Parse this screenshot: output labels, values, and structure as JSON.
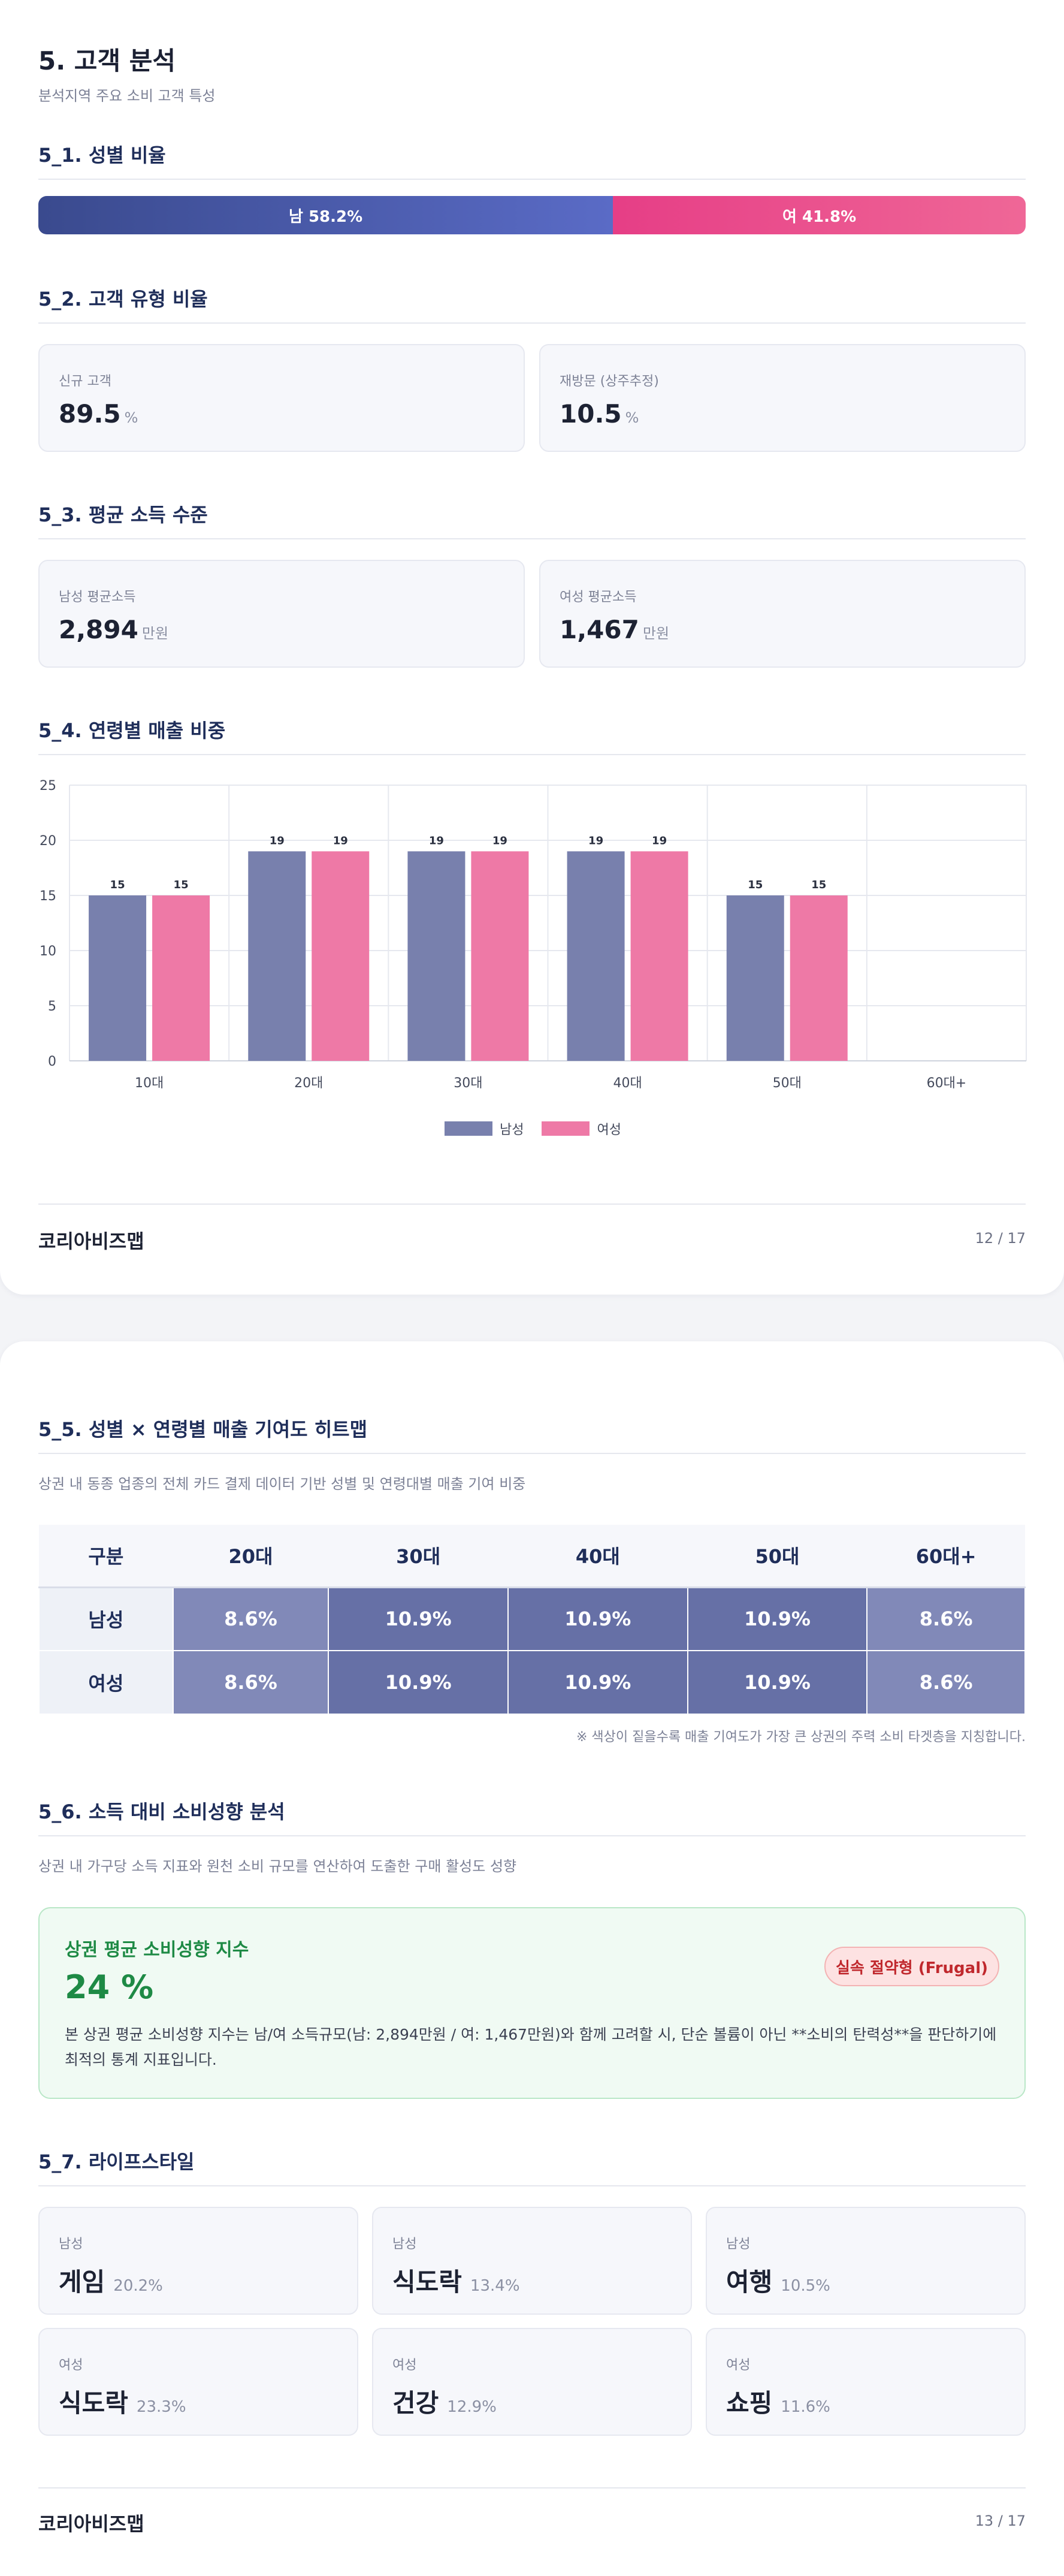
{
  "page1": {
    "title": "5. 고객 분석",
    "subtitle": "분석지역 주요 소비 고객 특성",
    "gender": {
      "section_title": "5_1. 성별 비율",
      "male_label": "남 58.2%",
      "female_label": "여 41.8%",
      "male_pct": 58.2,
      "female_pct": 41.8
    },
    "customer_type": {
      "section_title": "5_2. 고객 유형 비율",
      "cards": [
        {
          "label": "신규 고객",
          "value": "89.5",
          "unit": "%"
        },
        {
          "label": "재방문 (상주추정)",
          "value": "10.5",
          "unit": "%"
        }
      ]
    },
    "income": {
      "section_title": "5_3. 평균 소득 수준",
      "cards": [
        {
          "label": "남성 평균소득",
          "value": "2,894",
          "unit": "만원"
        },
        {
          "label": "여성 평균소득",
          "value": "1,467",
          "unit": "만원"
        }
      ]
    },
    "age_sales": {
      "section_title": "5_4. 연령별 매출 비중"
    },
    "footer": {
      "brand": "코리아비즈맵",
      "page": "12 / 17"
    }
  },
  "chart_data": {
    "type": "bar",
    "categories": [
      "10대",
      "20대",
      "30대",
      "40대",
      "50대",
      "60대+"
    ],
    "series": [
      {
        "name": "남성",
        "values": [
          15,
          19,
          19,
          19,
          15,
          0
        ],
        "color": "#7880ad"
      },
      {
        "name": "여성",
        "values": [
          15,
          19,
          19,
          19,
          15,
          0
        ],
        "color": "#ee79a6"
      }
    ],
    "data_labels": [
      [
        "15",
        "19",
        "19",
        "19",
        "15",
        ""
      ],
      [
        "15",
        "19",
        "19",
        "19",
        "15",
        ""
      ]
    ],
    "yticks": [
      "0",
      "5",
      "10",
      "15",
      "20",
      "25"
    ],
    "ylim": [
      0,
      25
    ],
    "grid": true,
    "legend": "bottom-center"
  },
  "page2": {
    "heatmap": {
      "section_title": "5_5. 성별 × 연령별 매출 기여도 히트맵",
      "description": "상권 내 동종 업종의 전체 카드 결제 데이터 기반 성별 및 연령대별 매출 기여 비중",
      "header": [
        "구분",
        "20대",
        "30대",
        "40대",
        "50대",
        "60대+"
      ],
      "rows": [
        {
          "label": "남성",
          "cells": [
            "8.6%",
            "10.9%",
            "10.9%",
            "10.9%",
            "8.6%"
          ]
        },
        {
          "label": "여성",
          "cells": [
            "8.6%",
            "10.9%",
            "10.9%",
            "10.9%",
            "8.6%"
          ]
        }
      ],
      "cell_colors": [
        "#8189b8",
        "#6670a6",
        "#6670a6",
        "#6670a6",
        "#8189b8"
      ],
      "note": "※ 색상이 짙을수록 매출 기여도가 가장 큰 상권의 주력 소비 타겟층을 지칭합니다."
    },
    "propensity": {
      "section_title": "5_6. 소득 대비 소비성향 분석",
      "description": "상권 내 가구당 소득 지표와 원천 소비 규모를 연산하여 도출한 구매 활성도 성향",
      "box_title": "상권 평균 소비성향 지수",
      "value": "24 %",
      "badge": "실속 절약형 (Frugal)",
      "desc": "본 상권 평균 소비성향 지수는 남/여 소득규모(남: 2,894만원 / 여: 1,467만원)와 함께 고려할 시, 단순 볼륨이 아닌 **소비의 탄력성**을 판단하기에 최적의 통계 지표입니다."
    },
    "lifestyle": {
      "section_title": "5_7. 라이프스타일",
      "items": [
        {
          "gender": "남성",
          "name": "게임",
          "pct": "20.2%"
        },
        {
          "gender": "남성",
          "name": "식도락",
          "pct": "13.4%"
        },
        {
          "gender": "남성",
          "name": "여행",
          "pct": "10.5%"
        },
        {
          "gender": "여성",
          "name": "식도락",
          "pct": "23.3%"
        },
        {
          "gender": "여성",
          "name": "건강",
          "pct": "12.9%"
        },
        {
          "gender": "여성",
          "name": "쇼핑",
          "pct": "11.6%"
        }
      ]
    },
    "footer": {
      "brand": "코리아비즈맵",
      "page": "13 / 17"
    }
  }
}
